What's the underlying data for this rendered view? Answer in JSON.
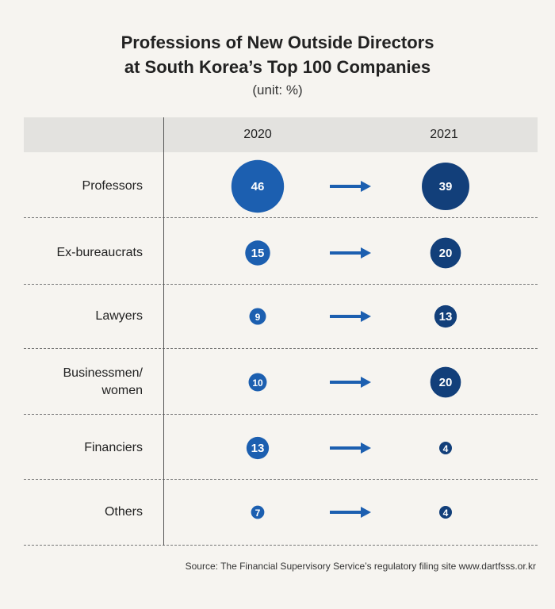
{
  "chart_data": {
    "type": "table",
    "title_lines": [
      "Professions of New Outside Directors",
      "at South Korea’s Top 100 Companies"
    ],
    "unit": "(unit: %)",
    "columns": [
      "2020",
      "2021"
    ],
    "rows": [
      {
        "label_lines": [
          "Professors"
        ],
        "v2020": 46,
        "v2021": 39
      },
      {
        "label_lines": [
          "Ex-bureaucrats"
        ],
        "v2020": 15,
        "v2021": 20
      },
      {
        "label_lines": [
          "Lawyers"
        ],
        "v2020": 9,
        "v2021": 13
      },
      {
        "label_lines": [
          "Businessmen/",
          "women"
        ],
        "v2020": 10,
        "v2021": 20
      },
      {
        "label_lines": [
          "Financiers"
        ],
        "v2020": 13,
        "v2021": 4
      },
      {
        "label_lines": [
          "Others"
        ],
        "v2020": 7,
        "v2021": 4
      }
    ],
    "colors": {
      "c2020": "#1c5fb0",
      "c2021": "#123f7a",
      "arrow": "#1c5fb0"
    }
  },
  "source": "Source: The Financial Supervisory Service’s regulatory filing site www.dartfsss.or.kr"
}
